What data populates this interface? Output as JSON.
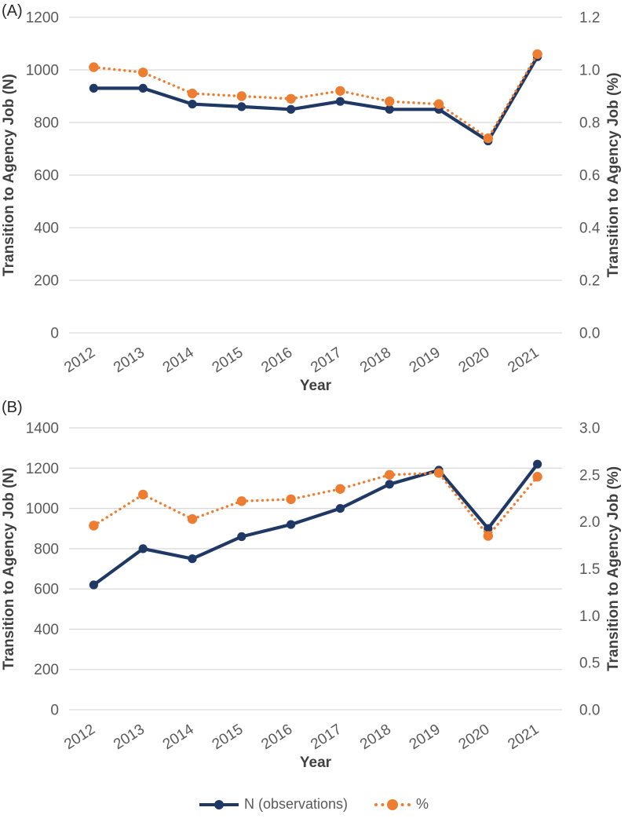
{
  "page": {
    "background": "#ffffff"
  },
  "colors": {
    "navy": "#1f3864",
    "orange": "#ed7d31",
    "grid": "#d9d9d9",
    "tick_text": "#595959",
    "axis_title_text": "#404040",
    "panel_label_text": "#262626"
  },
  "legend": {
    "items": [
      {
        "label": "N (observations)",
        "color_key": "navy",
        "style": "solid"
      },
      {
        "label": "%",
        "color_key": "orange",
        "style": "dotted"
      }
    ]
  },
  "chart_data": [
    {
      "id": "A",
      "type": "line",
      "panel_label": "(A)",
      "categories": [
        "2012",
        "2013",
        "2014",
        "2015",
        "2016",
        "2017",
        "2018",
        "2019",
        "2020",
        "2021"
      ],
      "xlabel": "Year",
      "grid": "horizontal",
      "legend_position": "shared-bottom",
      "left_axis": {
        "label": "Transition to Agency Job (N)",
        "min": 0,
        "max": 1200,
        "step": 200,
        "tick_labels": [
          "0",
          "200",
          "400",
          "600",
          "800",
          "1000",
          "1200"
        ]
      },
      "right_axis": {
        "label": "Transition to Agency Job (%)",
        "min": 0,
        "max": 1.2,
        "step": 0.2,
        "tick_labels": [
          "0.0",
          "0.2",
          "0.4",
          "0.6",
          "0.8",
          "1.0",
          "1.2"
        ]
      },
      "series": [
        {
          "name": "N (observations)",
          "axis": "left",
          "style": "solid",
          "color_key": "navy",
          "values": [
            930,
            930,
            870,
            860,
            850,
            880,
            850,
            850,
            730,
            1050
          ]
        },
        {
          "name": "%",
          "axis": "right",
          "style": "dotted",
          "color_key": "orange",
          "values": [
            1.01,
            0.99,
            0.91,
            0.9,
            0.89,
            0.92,
            0.88,
            0.87,
            0.74,
            1.06
          ]
        }
      ]
    },
    {
      "id": "B",
      "type": "line",
      "panel_label": "(B)",
      "categories": [
        "2012",
        "2013",
        "2014",
        "2015",
        "2016",
        "2017",
        "2018",
        "2019",
        "2020",
        "2021"
      ],
      "xlabel": "Year",
      "grid": "horizontal",
      "legend_position": "shared-bottom",
      "left_axis": {
        "label": "Transition to Agency Job (N)",
        "min": 0,
        "max": 1400,
        "step": 200,
        "tick_labels": [
          "0",
          "200",
          "400",
          "600",
          "800",
          "1000",
          "1200",
          "1400"
        ]
      },
      "right_axis": {
        "label": "Transition to Agency Job (%)",
        "min": 0,
        "max": 3.0,
        "step": 0.5,
        "tick_labels": [
          "0.0",
          "0.5",
          "1.0",
          "1.5",
          "2.0",
          "2.5",
          "3.0"
        ]
      },
      "series": [
        {
          "name": "N (observations)",
          "axis": "left",
          "style": "solid",
          "color_key": "navy",
          "values": [
            620,
            800,
            750,
            860,
            920,
            1000,
            1120,
            1190,
            900,
            1220
          ]
        },
        {
          "name": "%",
          "axis": "right",
          "style": "dotted",
          "color_key": "orange",
          "values": [
            1.96,
            2.29,
            2.03,
            2.22,
            2.24,
            2.35,
            2.5,
            2.52,
            1.85,
            2.48
          ]
        }
      ]
    }
  ]
}
